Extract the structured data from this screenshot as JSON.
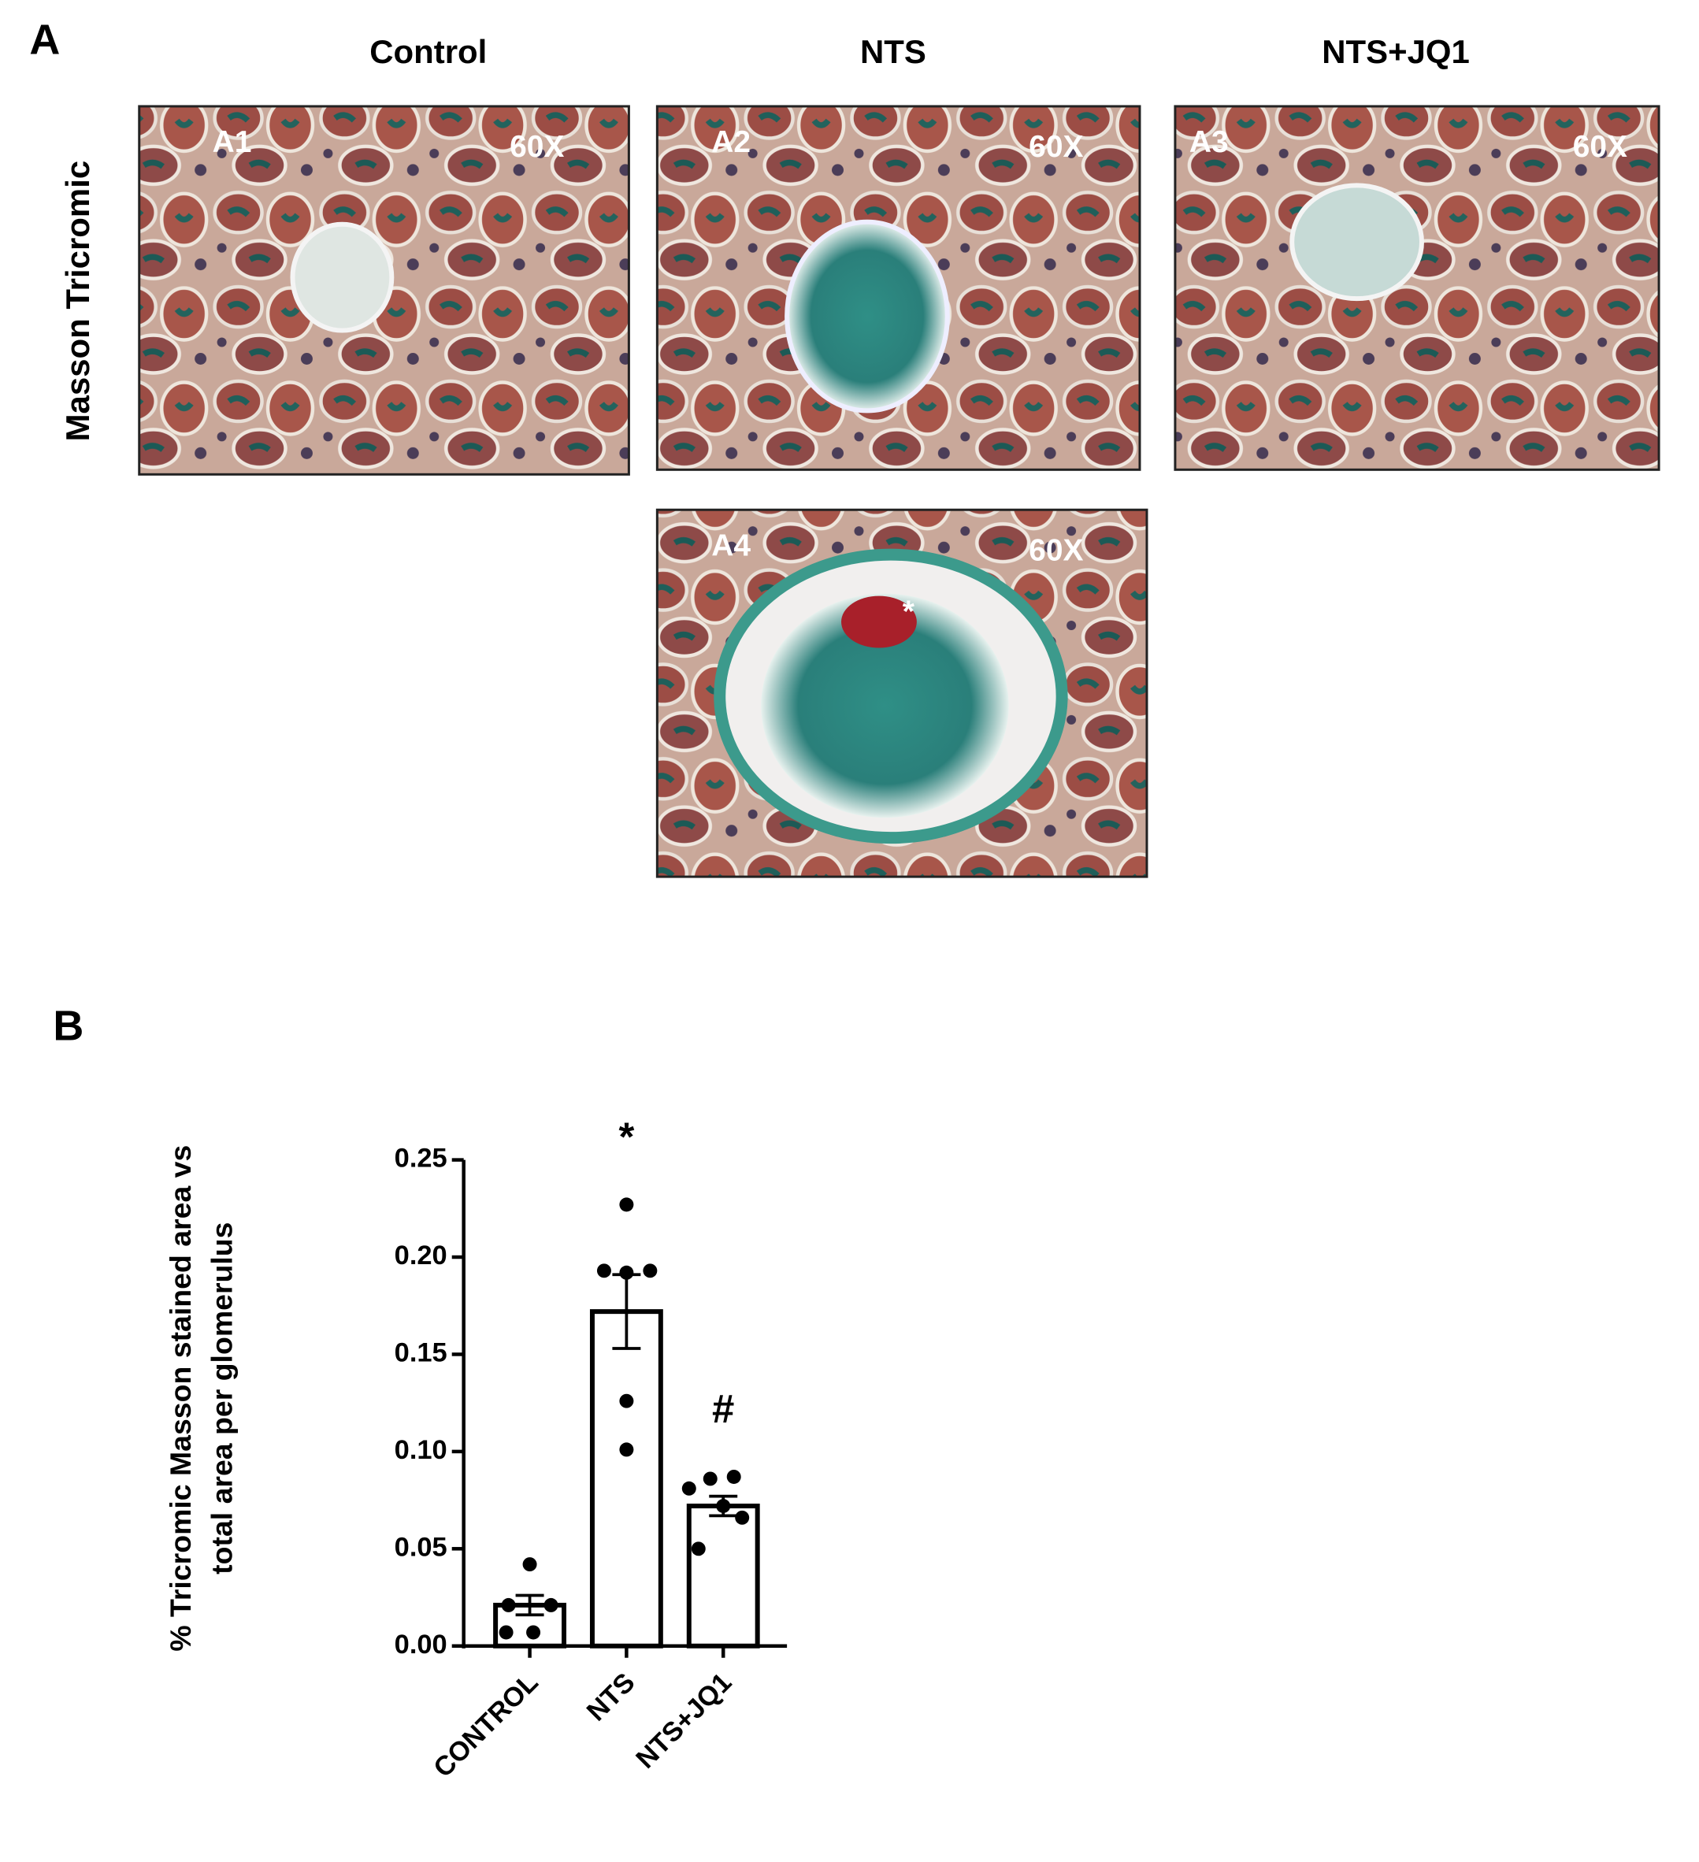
{
  "panel_a": {
    "label": "A",
    "row_label": "Masson Tricromic",
    "columns": [
      "Control",
      "NTS",
      "NTS+JQ1"
    ],
    "images": [
      {
        "label": "A1",
        "magnification": "60X"
      },
      {
        "label": "A2",
        "magnification": "60X"
      },
      {
        "label": "A3",
        "magnification": "60X"
      },
      {
        "label": "A4",
        "magnification": "60X",
        "marker": "*"
      }
    ]
  },
  "panel_b": {
    "label": "B"
  },
  "chart_data": {
    "type": "bar",
    "ylabel": [
      "%  Tricromic Masson stained area vs",
      "total area per glomerulus"
    ],
    "categories": [
      "CONTROL",
      "NTS",
      "NTS+JQ1"
    ],
    "values": [
      0.021,
      0.172,
      0.072
    ],
    "errors": [
      0.005,
      0.019,
      0.005
    ],
    "points": [
      [
        0.042,
        0.021,
        0.021,
        0.007,
        0.007
      ],
      [
        0.227,
        0.193,
        0.192,
        0.193,
        0.126,
        0.101
      ],
      [
        0.086,
        0.087,
        0.081,
        0.072,
        0.066,
        0.05
      ]
    ],
    "annotations": [
      null,
      "*",
      "#"
    ],
    "color": "#ffffff",
    "ylim": [
      0,
      0.25
    ],
    "yticks": [
      {
        "value": 0,
        "label": "0.00"
      },
      0.05,
      {
        "value": 0.1,
        "label": "0.10"
      },
      0.15,
      {
        "value": 0.2,
        "label": "0.20"
      },
      0.25
    ]
  }
}
